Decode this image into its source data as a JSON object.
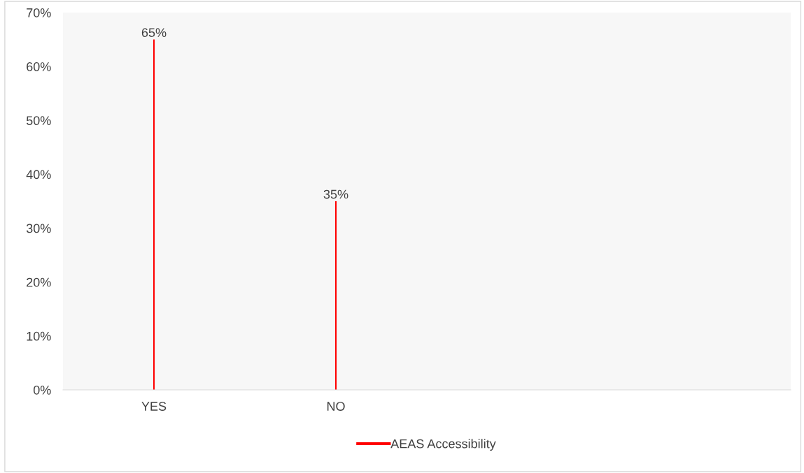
{
  "chart_data": {
    "type": "bar",
    "categories": [
      "YES",
      "NO",
      null,
      null
    ],
    "series": [
      {
        "name": "AEAS Accessibility",
        "color": "#ff0000",
        "values": [
          65,
          35,
          null,
          null
        ]
      }
    ],
    "ylim": [
      0,
      70
    ],
    "yticks": [
      {
        "value": 0,
        "label": "0%"
      },
      {
        "value": 10,
        "label": "10%"
      },
      {
        "value": 20,
        "label": "20%"
      },
      {
        "value": 30,
        "label": "30%"
      },
      {
        "value": 40,
        "label": "40%"
      },
      {
        "value": 50,
        "label": "50%"
      },
      {
        "value": 60,
        "label": "60%"
      },
      {
        "value": 70,
        "label": "70%"
      }
    ],
    "value_labels": [
      "65%",
      "35%",
      null,
      null
    ],
    "grid": false,
    "legend": "bottom"
  }
}
